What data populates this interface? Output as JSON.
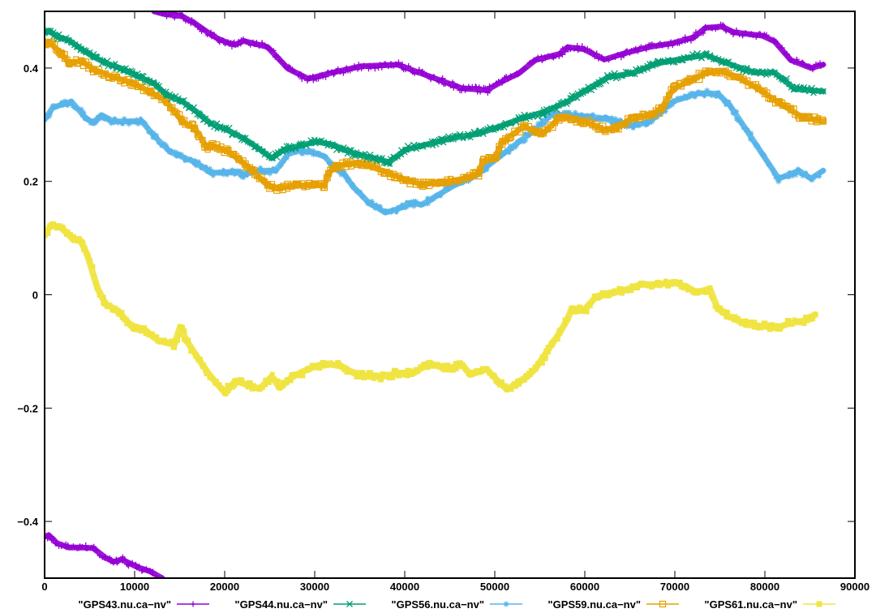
{
  "chart_data": {
    "type": "scatter",
    "title": "",
    "xlabel": "",
    "ylabel": "",
    "xlim": [
      0,
      90000
    ],
    "ylim": [
      -0.5,
      0.5
    ],
    "grid": false,
    "legend_position": "bottom",
    "x_ticks": [
      0,
      10000,
      20000,
      30000,
      40000,
      50000,
      60000,
      70000,
      80000,
      90000
    ],
    "x_tick_labels": [
      "0",
      "10000",
      "20000",
      "30000",
      "40000",
      "50000",
      "60000",
      "70000",
      "80000",
      "90000"
    ],
    "y_ticks": [
      -0.4,
      -0.2,
      0,
      0.2,
      0.4
    ],
    "y_tick_labels": [
      "−0.4",
      "−0.2",
      "0",
      "0.2",
      "0.4"
    ],
    "series": [
      {
        "name": "\"GPS43.nu.ca−nv\"",
        "color": "#9400d3",
        "marker": "plus",
        "segments": [
          {
            "x": [
              0,
              450,
              1350,
              2700,
              4050,
              5400,
              6760,
              7660,
              8560,
              9460,
              10360,
              11710,
              13060
            ],
            "y": [
              -0.427,
              -0.424,
              -0.438,
              -0.446,
              -0.446,
              -0.447,
              -0.464,
              -0.471,
              -0.467,
              -0.474,
              -0.481,
              -0.488,
              -0.5
            ]
          },
          {
            "x": [
              12160,
              13060,
              15320,
              16670,
              17570,
              18470,
              19370,
              20270,
              21170,
              22070,
              24770,
              27030,
              29280,
              31980,
              35140,
              39190,
              42790,
              46400,
              49100,
              50900,
              52700,
              54500,
              57210,
              58110,
              59910,
              62160,
              64410,
              67120,
              69820,
              72070,
              73420,
              75230,
              76580,
              79730,
              81080,
              82880,
              85130,
              86480
            ],
            "y": [
              0.5,
              0.496,
              0.491,
              0.479,
              0.469,
              0.459,
              0.451,
              0.445,
              0.441,
              0.448,
              0.437,
              0.399,
              0.381,
              0.392,
              0.403,
              0.406,
              0.385,
              0.364,
              0.361,
              0.377,
              0.391,
              0.414,
              0.425,
              0.437,
              0.433,
              0.415,
              0.426,
              0.437,
              0.444,
              0.454,
              0.471,
              0.473,
              0.463,
              0.457,
              0.447,
              0.414,
              0.4,
              0.406
            ]
          }
        ]
      },
      {
        "name": "\"GPS44.nu.ca−nv\"",
        "color": "#009e73",
        "marker": "cross",
        "segments": [
          {
            "x": [
              0,
              450,
              1350,
              2700,
              4050,
              5400,
              6760,
              8560,
              10360,
              12160,
              13510,
              15320,
              17120,
              18470,
              20270,
              22070,
              23420,
              25220,
              26580,
              28380,
              30180,
              31980,
              32880,
              34690,
              36490,
              38290,
              40090,
              41890,
              43690,
              45500,
              48200,
              50000,
              53150,
              55410,
              58110,
              59910,
              62610,
              65310,
              68020,
              70720,
              73420,
              75670,
              78830,
              81080,
              83330,
              86480
            ],
            "y": [
              0.463,
              0.466,
              0.456,
              0.449,
              0.434,
              0.42,
              0.409,
              0.399,
              0.385,
              0.373,
              0.353,
              0.341,
              0.32,
              0.302,
              0.291,
              0.276,
              0.262,
              0.241,
              0.256,
              0.263,
              0.27,
              0.265,
              0.258,
              0.248,
              0.241,
              0.234,
              0.256,
              0.263,
              0.27,
              0.277,
              0.284,
              0.294,
              0.312,
              0.322,
              0.341,
              0.359,
              0.384,
              0.391,
              0.408,
              0.416,
              0.423,
              0.409,
              0.392,
              0.392,
              0.363,
              0.359
            ]
          }
        ]
      },
      {
        "name": "\"GPS56.nu.ca−nv\"",
        "color": "#56b4e9",
        "marker": "star",
        "segments": [
          {
            "x": [
              0,
              900,
              2970,
              4500,
              5400,
              6310,
              7660,
              9460,
              10810,
              12160,
              13960,
              16670,
              18470,
              21170,
              22070,
              23870,
              25670,
              27030,
              28380,
              29730,
              31080,
              31980,
              33330,
              34240,
              36040,
              37840,
              39190,
              40540,
              41890,
              43690,
              45500,
              47300,
              49100,
              50900,
              52700,
              54500,
              56310,
              59010,
              61710,
              65310,
              67120,
              69820,
              72520,
              74770,
              76120,
              77930,
              79730,
              81530,
              83780,
              85130,
              86480
            ],
            "y": [
              0.309,
              0.33,
              0.341,
              0.313,
              0.303,
              0.317,
              0.306,
              0.306,
              0.306,
              0.28,
              0.252,
              0.234,
              0.215,
              0.217,
              0.212,
              0.219,
              0.219,
              0.248,
              0.255,
              0.251,
              0.244,
              0.229,
              0.212,
              0.191,
              0.162,
              0.145,
              0.151,
              0.162,
              0.159,
              0.176,
              0.193,
              0.205,
              0.226,
              0.248,
              0.27,
              0.291,
              0.319,
              0.316,
              0.312,
              0.298,
              0.305,
              0.341,
              0.355,
              0.355,
              0.334,
              0.291,
              0.248,
              0.205,
              0.219,
              0.205,
              0.219
            ]
          }
        ]
      },
      {
        "name": "\"GPS59.nu.ca−nv\"",
        "color": "#e69f00",
        "marker": "box",
        "segments": [
          {
            "x": [
              0,
              450,
              1800,
              2700,
              4050,
              5400,
              7660,
              9910,
              11710,
              13510,
              15320,
              16670,
              18020,
              18470,
              20270,
              21620,
              22970,
              24770,
              26120,
              27930,
              29730,
              31080,
              31530,
              32430,
              33780,
              35140,
              36490,
              38290,
              40090,
              41890,
              44590,
              46850,
              48200,
              48650,
              50000,
              50900,
              53150,
              55410,
              57210,
              59910,
              62160,
              63510,
              65310,
              67120,
              68470,
              69820,
              71620,
              73420,
              75230,
              77030,
              79280,
              81980,
              84230,
              86480
            ],
            "y": [
              0.441,
              0.446,
              0.427,
              0.408,
              0.413,
              0.398,
              0.384,
              0.373,
              0.358,
              0.341,
              0.305,
              0.294,
              0.26,
              0.264,
              0.254,
              0.238,
              0.221,
              0.193,
              0.188,
              0.193,
              0.193,
              0.193,
              0.214,
              0.228,
              0.231,
              0.231,
              0.225,
              0.214,
              0.203,
              0.195,
              0.199,
              0.206,
              0.214,
              0.235,
              0.242,
              0.271,
              0.296,
              0.285,
              0.313,
              0.306,
              0.291,
              0.294,
              0.313,
              0.317,
              0.327,
              0.363,
              0.377,
              0.391,
              0.394,
              0.384,
              0.363,
              0.334,
              0.313,
              0.306
            ]
          }
        ]
      },
      {
        "name": "\"GPS61.nu.ca−nv\"",
        "color": "#f0e442",
        "marker": "filled-box",
        "segments": [
          {
            "x": [
              0,
              630,
              1800,
              3150,
              4050,
              4770,
              5860,
              6760,
              8110,
              9910,
              11260,
              12610,
              14410,
              15050,
              15770,
              17120,
              18470,
              20090,
              21170,
              22520,
              23870,
              25220,
              26120,
              27480,
              29280,
              31080,
              32880,
              34690,
              37390,
              39190,
              40990,
              42790,
              44590,
              46400,
              47300,
              49100,
              50180,
              51350,
              53150,
              54500,
              56310,
              57210,
              58110,
              58560,
              59910,
              61260,
              62610,
              64410,
              66210,
              68020,
              69820,
              71170,
              72520,
              73880,
              74770,
              76120,
              77930,
              80180,
              81530,
              82880,
              84680,
              85130,
              85580
            ],
            "y": [
              0.105,
              0.122,
              0.119,
              0.098,
              0.094,
              0.069,
              0.012,
              -0.016,
              -0.028,
              -0.06,
              -0.064,
              -0.081,
              -0.088,
              -0.057,
              -0.081,
              -0.114,
              -0.145,
              -0.174,
              -0.152,
              -0.159,
              -0.166,
              -0.145,
              -0.164,
              -0.145,
              -0.131,
              -0.121,
              -0.126,
              -0.141,
              -0.145,
              -0.138,
              -0.138,
              -0.121,
              -0.131,
              -0.124,
              -0.141,
              -0.131,
              -0.15,
              -0.167,
              -0.15,
              -0.131,
              -0.088,
              -0.067,
              -0.042,
              -0.024,
              -0.028,
              -0.003,
              0.001,
              0.008,
              0.018,
              0.018,
              0.022,
              0.015,
              0.004,
              0.011,
              -0.025,
              -0.039,
              -0.053,
              -0.056,
              -0.057,
              -0.05,
              -0.045,
              -0.039,
              -0.035
            ]
          }
        ]
      }
    ]
  }
}
